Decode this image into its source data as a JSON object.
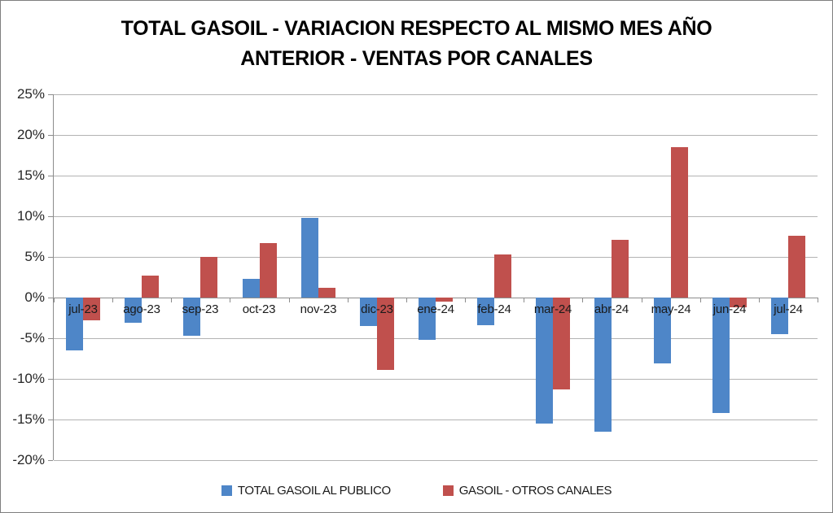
{
  "title": "TOTAL GASOIL - VARIACION RESPECTO AL MISMO MES AÑO ANTERIOR - VENTAS POR CANALES",
  "colors": {
    "series_blue": "#4E86C8",
    "series_red": "#C0504D",
    "gridline": "#B3B3B3",
    "axis": "#8C8C8C",
    "text": "#262626"
  },
  "chart_data": {
    "type": "bar",
    "title": "TOTAL GASOIL - VARIACION RESPECTO AL MISMO MES AÑO ANTERIOR - VENTAS POR CANALES",
    "categories": [
      "jul-23",
      "ago-23",
      "sep-23",
      "oct-23",
      "nov-23",
      "dic-23",
      "ene-24",
      "feb-24",
      "mar-24",
      "abr-24",
      "may-24",
      "jun-24",
      "jul-24"
    ],
    "series": [
      {
        "name": "TOTAL GASOIL AL PUBLICO",
        "color": "#4E86C8",
        "values": [
          -6.5,
          -3.1,
          -4.7,
          2.3,
          9.8,
          -3.5,
          -5.2,
          -3.4,
          -15.5,
          -16.5,
          -8.1,
          -14.2,
          -4.5
        ]
      },
      {
        "name": "GASOIL - OTROS CANALES",
        "color": "#C0504D",
        "values": [
          -2.8,
          2.7,
          5.0,
          6.7,
          1.2,
          -8.9,
          -0.5,
          5.3,
          -11.3,
          7.1,
          18.5,
          -1.2,
          7.6
        ]
      }
    ],
    "xlabel": "",
    "ylabel": "",
    "ylim": [
      -20,
      25
    ],
    "ytick_step": 5,
    "ytick_format": "percent",
    "grid": true,
    "legend_position": "bottom",
    "x_labels_position": "next-to-zero-axis"
  }
}
